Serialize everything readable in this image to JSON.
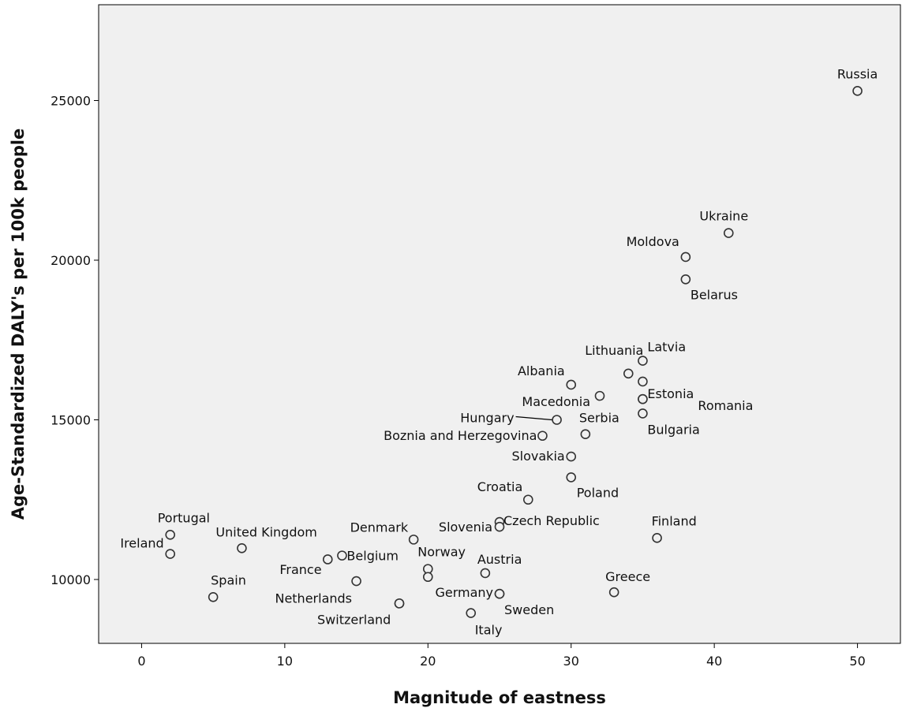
{
  "chart_data": {
    "type": "scatter",
    "title": "",
    "xlabel": "Magnitude of eastness",
    "ylabel": "Age-Standardized DALY's per 100k people",
    "xlim": [
      -3,
      53
    ],
    "ylim": [
      8000,
      28000
    ],
    "xticks": [
      0,
      10,
      20,
      30,
      40,
      50
    ],
    "yticks": [
      10000,
      15000,
      20000,
      25000
    ],
    "grid": false,
    "legend": "none",
    "colors": {
      "plot_bg": "#f0f0f0",
      "marker_stroke": "#333333",
      "marker_fill": "#f0f0f0",
      "text": "#111111",
      "axis": "#000000"
    },
    "points": [
      {
        "label": "Russia",
        "x": 50,
        "y": 25300
      },
      {
        "label": "Ukraine",
        "x": 41,
        "y": 20850
      },
      {
        "label": "Moldova",
        "x": 38,
        "y": 20100
      },
      {
        "label": "Belarus",
        "x": 38,
        "y": 19400
      },
      {
        "label": "Latvia",
        "x": 35,
        "y": 16850
      },
      {
        "label": "Lithuania",
        "x": 34,
        "y": 16450
      },
      {
        "label": "",
        "x": 35,
        "y": 16200
      },
      {
        "label": "Albania",
        "x": 30,
        "y": 16100
      },
      {
        "label": "Macedonia",
        "x": 32,
        "y": 15750
      },
      {
        "label": "Estonia",
        "x": 35,
        "y": 15650
      },
      {
        "label": "Romania",
        "x": 35,
        "y": 15650
      },
      {
        "label": "Bulgaria",
        "x": 35,
        "y": 15200
      },
      {
        "label": "Hungary",
        "x": 29,
        "y": 15000
      },
      {
        "label": "Serbia",
        "x": 31,
        "y": 14550
      },
      {
        "label": "Boznia and Herzegovina",
        "x": 28,
        "y": 14500
      },
      {
        "label": "Slovakia",
        "x": 30,
        "y": 13850
      },
      {
        "label": "Poland",
        "x": 30,
        "y": 13200
      },
      {
        "label": "Croatia",
        "x": 27,
        "y": 12500
      },
      {
        "label": "Czech Republic",
        "x": 25,
        "y": 11800
      },
      {
        "label": "Slovenia",
        "x": 25,
        "y": 11650
      },
      {
        "label": "Finland",
        "x": 36,
        "y": 11300
      },
      {
        "label": "Denmark",
        "x": 19,
        "y": 11250
      },
      {
        "label": "Portugal",
        "x": 2,
        "y": 11400
      },
      {
        "label": "United Kingdom",
        "x": 7,
        "y": 10980
      },
      {
        "label": "Ireland",
        "x": 2,
        "y": 10800
      },
      {
        "label": "Belgium",
        "x": 14,
        "y": 10750
      },
      {
        "label": "",
        "x": 13,
        "y": 10630
      },
      {
        "label": "Norway",
        "x": 20,
        "y": 10330
      },
      {
        "label": "Austria",
        "x": 24,
        "y": 10200
      },
      {
        "label": "",
        "x": 20,
        "y": 10080
      },
      {
        "label": "France",
        "x": 15,
        "y": 9950
      },
      {
        "label": "Greece",
        "x": 33,
        "y": 9600
      },
      {
        "label": "Germany",
        "x": 25,
        "y": 9550
      },
      {
        "label": "Spain",
        "x": 5,
        "y": 9450
      },
      {
        "label": "Netherlands",
        "x": 18,
        "y": 9250
      },
      {
        "label": "Sweden",
        "x": 25,
        "y": 9550
      },
      {
        "label": "Switzerland",
        "x": 18,
        "y": 9250
      },
      {
        "label": "Italy",
        "x": 23,
        "y": 8950
      }
    ]
  }
}
